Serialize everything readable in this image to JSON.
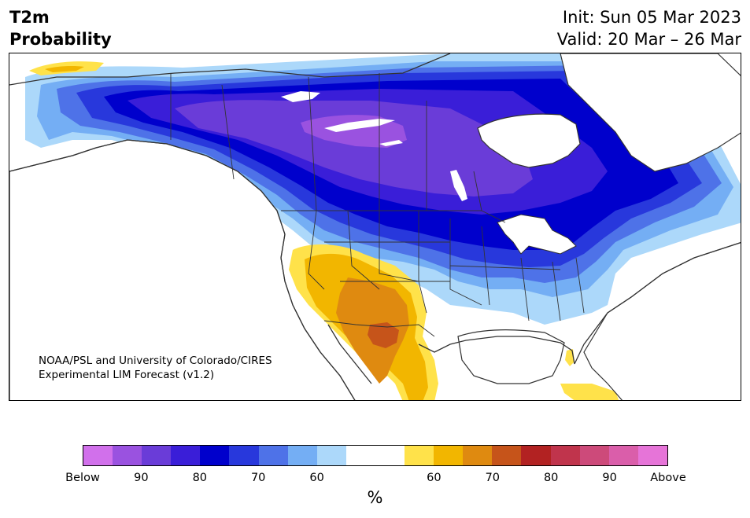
{
  "header": {
    "title_line1": "T2m",
    "title_line2": "Probability",
    "init": "Init: Sun 05 Mar 2023",
    "valid": "Valid: 20 Mar – 26 Mar"
  },
  "credit": {
    "line1": "NOAA/PSL and University of Colorado/CIRES",
    "line2": "Experimental LIM Forecast (v1.2)"
  },
  "colorbar": {
    "unit": "%",
    "colors": [
      "#d170eb",
      "#9a52e0",
      "#6a3cd8",
      "#3a1ed8",
      "#0000cc",
      "#2838dc",
      "#4e72e8",
      "#74aef4",
      "#acd8fa",
      "#ffffff",
      "#ffffff",
      "#ffe24a",
      "#f2b600",
      "#df8a10",
      "#c6541a",
      "#b22222",
      "#c0344c",
      "#cd4a7a",
      "#da5eaa",
      "#e674d8"
    ],
    "tick_labels": [
      "Below",
      "90",
      "80",
      "70",
      "60",
      "60",
      "70",
      "80",
      "90",
      "Above"
    ]
  },
  "map": {
    "region": "North America",
    "colors": {
      "land": "#ffffff",
      "border": "#333333"
    }
  }
}
